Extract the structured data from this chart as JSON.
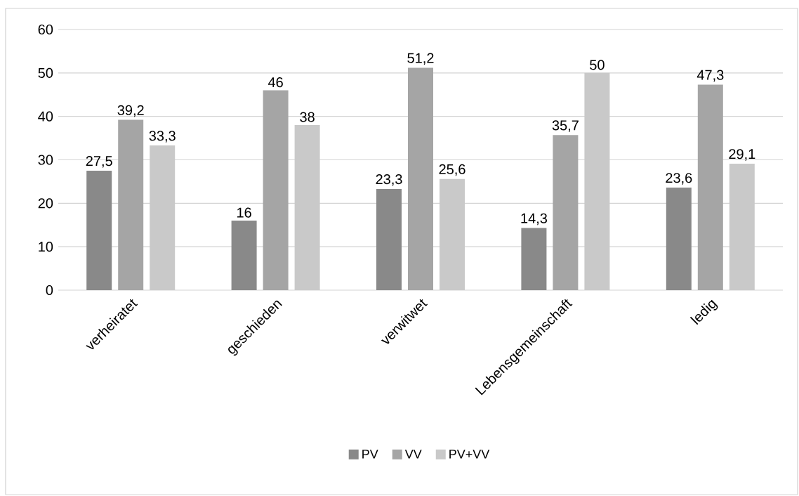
{
  "chart_data": {
    "type": "bar",
    "categories": [
      "verheiratet",
      "geschieden",
      "verwitwet",
      "Lebensgemeinschaft",
      "ledig"
    ],
    "series": [
      {
        "name": "PV",
        "color": "#898989",
        "values": [
          27.5,
          16,
          23.3,
          14.3,
          23.6
        ],
        "value_labels": [
          "27,5",
          "16",
          "23,3",
          "14,3",
          "23,6"
        ]
      },
      {
        "name": "VV",
        "color": "#a5a5a5",
        "values": [
          39.2,
          46,
          51.2,
          35.7,
          47.3
        ],
        "value_labels": [
          "39,2",
          "46",
          "51,2",
          "35,7",
          "47,3"
        ]
      },
      {
        "name": "PV+VV",
        "color": "#c9c9c9",
        "values": [
          33.3,
          38,
          25.6,
          50,
          29.1
        ],
        "value_labels": [
          "33,3",
          "38",
          "25,6",
          "50",
          "29,1"
        ]
      }
    ],
    "ylim": [
      0,
      60
    ],
    "yticks": [
      0,
      10,
      20,
      30,
      40,
      50,
      60
    ],
    "grid": "y",
    "legend": "bottom"
  }
}
